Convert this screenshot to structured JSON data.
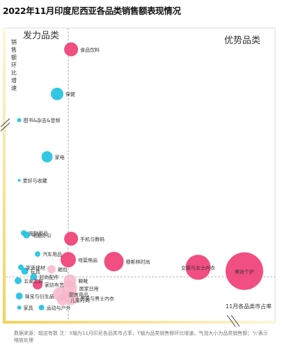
{
  "title": "2022年11月印度尼西亚各品类销售额表现情况",
  "footer": "数据来源：超店有数    注：X轴为11月印尼各品类市占率，Y轴为品类销售额环比增速，气泡大小为品类销售额；'\\\\'表示缩放处理",
  "colors": {
    "pink": "#f0457a",
    "cyan": "#27c3e3",
    "light_pink": "#f7b6c9",
    "axis_gold": "#f3d25c"
  },
  "chart_data": {
    "type": "scatter",
    "title": "2022年11月印度尼西亚各品类销售额表现情况",
    "xlabel": "11月各品类市占率",
    "ylabel": "销售额环比增速",
    "quadrant_labels": {
      "top_left": "发力品类",
      "top_right": "优势品类"
    },
    "points": [
      {
        "label": "食品饮料",
        "x": 0.05,
        "y": 0.95,
        "size": 10,
        "color": "pink"
      },
      {
        "label": "保健",
        "x": -0.2,
        "y": 0.78,
        "size": 9,
        "color": "cyan"
      },
      {
        "label": "图书&杂志&音频",
        "x": -0.88,
        "y": 0.68,
        "size": 3,
        "color": "cyan"
      },
      {
        "label": "家电",
        "x": -0.38,
        "y": 0.54,
        "size": 8,
        "color": "cyan"
      },
      {
        "label": "爱好与收藏",
        "x": -0.88,
        "y": 0.45,
        "size": 2,
        "color": "cyan"
      },
      {
        "label": "宠物用品",
        "x": -0.8,
        "y": 0.23,
        "size": 4,
        "color": "cyan"
      },
      {
        "label": "电脑办公",
        "x": -0.75,
        "y": 0.22,
        "size": 5,
        "color": "cyan"
      },
      {
        "label": "手机与数码",
        "x": 0.05,
        "y": 0.2,
        "size": 10,
        "color": "pink"
      },
      {
        "label": "汽车用品",
        "x": -0.55,
        "y": 0.12,
        "size": 4,
        "color": "cyan"
      },
      {
        "label": "母婴用品",
        "x": 0.0,
        "y": 0.09,
        "size": 11,
        "color": "pink"
      },
      {
        "label": "穆斯林时尚",
        "x": 0.8,
        "y": 0.08,
        "size": 14,
        "color": "pink"
      },
      {
        "label": "家装建材",
        "x": -0.85,
        "y": 0.05,
        "size": 4,
        "color": "cyan"
      },
      {
        "label": "箱包",
        "x": -0.3,
        "y": 0.04,
        "size": 6,
        "color": "light_pink"
      },
      {
        "label": "女装与女士内衣",
        "x": 2.1,
        "y": 0.05,
        "size": 18,
        "color": "pink"
      },
      {
        "label": "美妆个护",
        "x": 2.8,
        "y": 0.03,
        "size": 27,
        "color": "pink"
      },
      {
        "label": "玩具",
        "x": -0.78,
        "y": 0.03,
        "size": 5,
        "color": "cyan"
      },
      {
        "label": "时尚配件",
        "x": -0.62,
        "y": 0.0,
        "size": 5,
        "color": "cyan"
      },
      {
        "label": "鞋靴",
        "x": 0.03,
        "y": -0.02,
        "size": 9,
        "color": "light_pink"
      },
      {
        "label": "五金工具",
        "x": -0.9,
        "y": -0.02,
        "size": 5,
        "color": "cyan"
      },
      {
        "label": "家纺布艺",
        "x": -0.55,
        "y": -0.04,
        "size": 7,
        "color": "pink"
      },
      {
        "label": "居家日用",
        "x": 0.02,
        "y": -0.06,
        "size": 11,
        "color": "light_pink"
      },
      {
        "label": "厨房用品",
        "x": -0.15,
        "y": -0.09,
        "size": 10,
        "color": "light_pink"
      },
      {
        "label": "珠宝与衍生品",
        "x": -0.88,
        "y": -0.1,
        "size": 5,
        "color": "cyan"
      },
      {
        "label": "儿童时尚",
        "x": -0.1,
        "y": -0.12,
        "size": 8,
        "color": "light_pink"
      },
      {
        "label": "男装与男士内衣",
        "x": 0.05,
        "y": -0.11,
        "size": 10,
        "color": "light_pink"
      },
      {
        "label": "家具",
        "x": -0.88,
        "y": -0.16,
        "size": 3,
        "color": "cyan"
      },
      {
        "label": "运动与户外",
        "x": -0.48,
        "y": -0.16,
        "size": 4,
        "color": "cyan"
      }
    ]
  }
}
